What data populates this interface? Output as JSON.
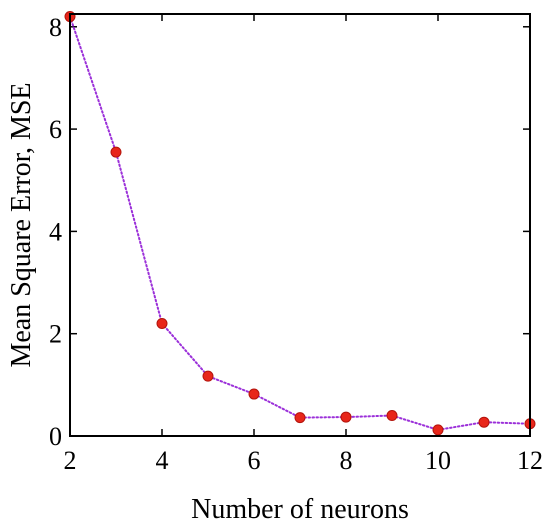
{
  "chart_data": {
    "type": "line",
    "xlabel": "Number of neurons",
    "ylabel": "Mean Square Error, MSE",
    "xlim": [
      2,
      12
    ],
    "ylim": [
      0,
      8.25
    ],
    "xticks": [
      2,
      4,
      6,
      8,
      10,
      12
    ],
    "yticks": [
      0,
      2,
      4,
      6,
      8
    ],
    "grid": false,
    "series": [
      {
        "x": [
          2,
          3,
          4,
          5,
          6,
          7,
          8,
          9,
          10,
          11,
          12
        ],
        "y": [
          8.2,
          5.55,
          2.2,
          1.17,
          0.82,
          0.36,
          0.37,
          0.4,
          0.12,
          0.27,
          0.24
        ],
        "line_color": "#9b30d9",
        "line_style": "dotted",
        "marker_color": "#e8261a"
      }
    ]
  }
}
